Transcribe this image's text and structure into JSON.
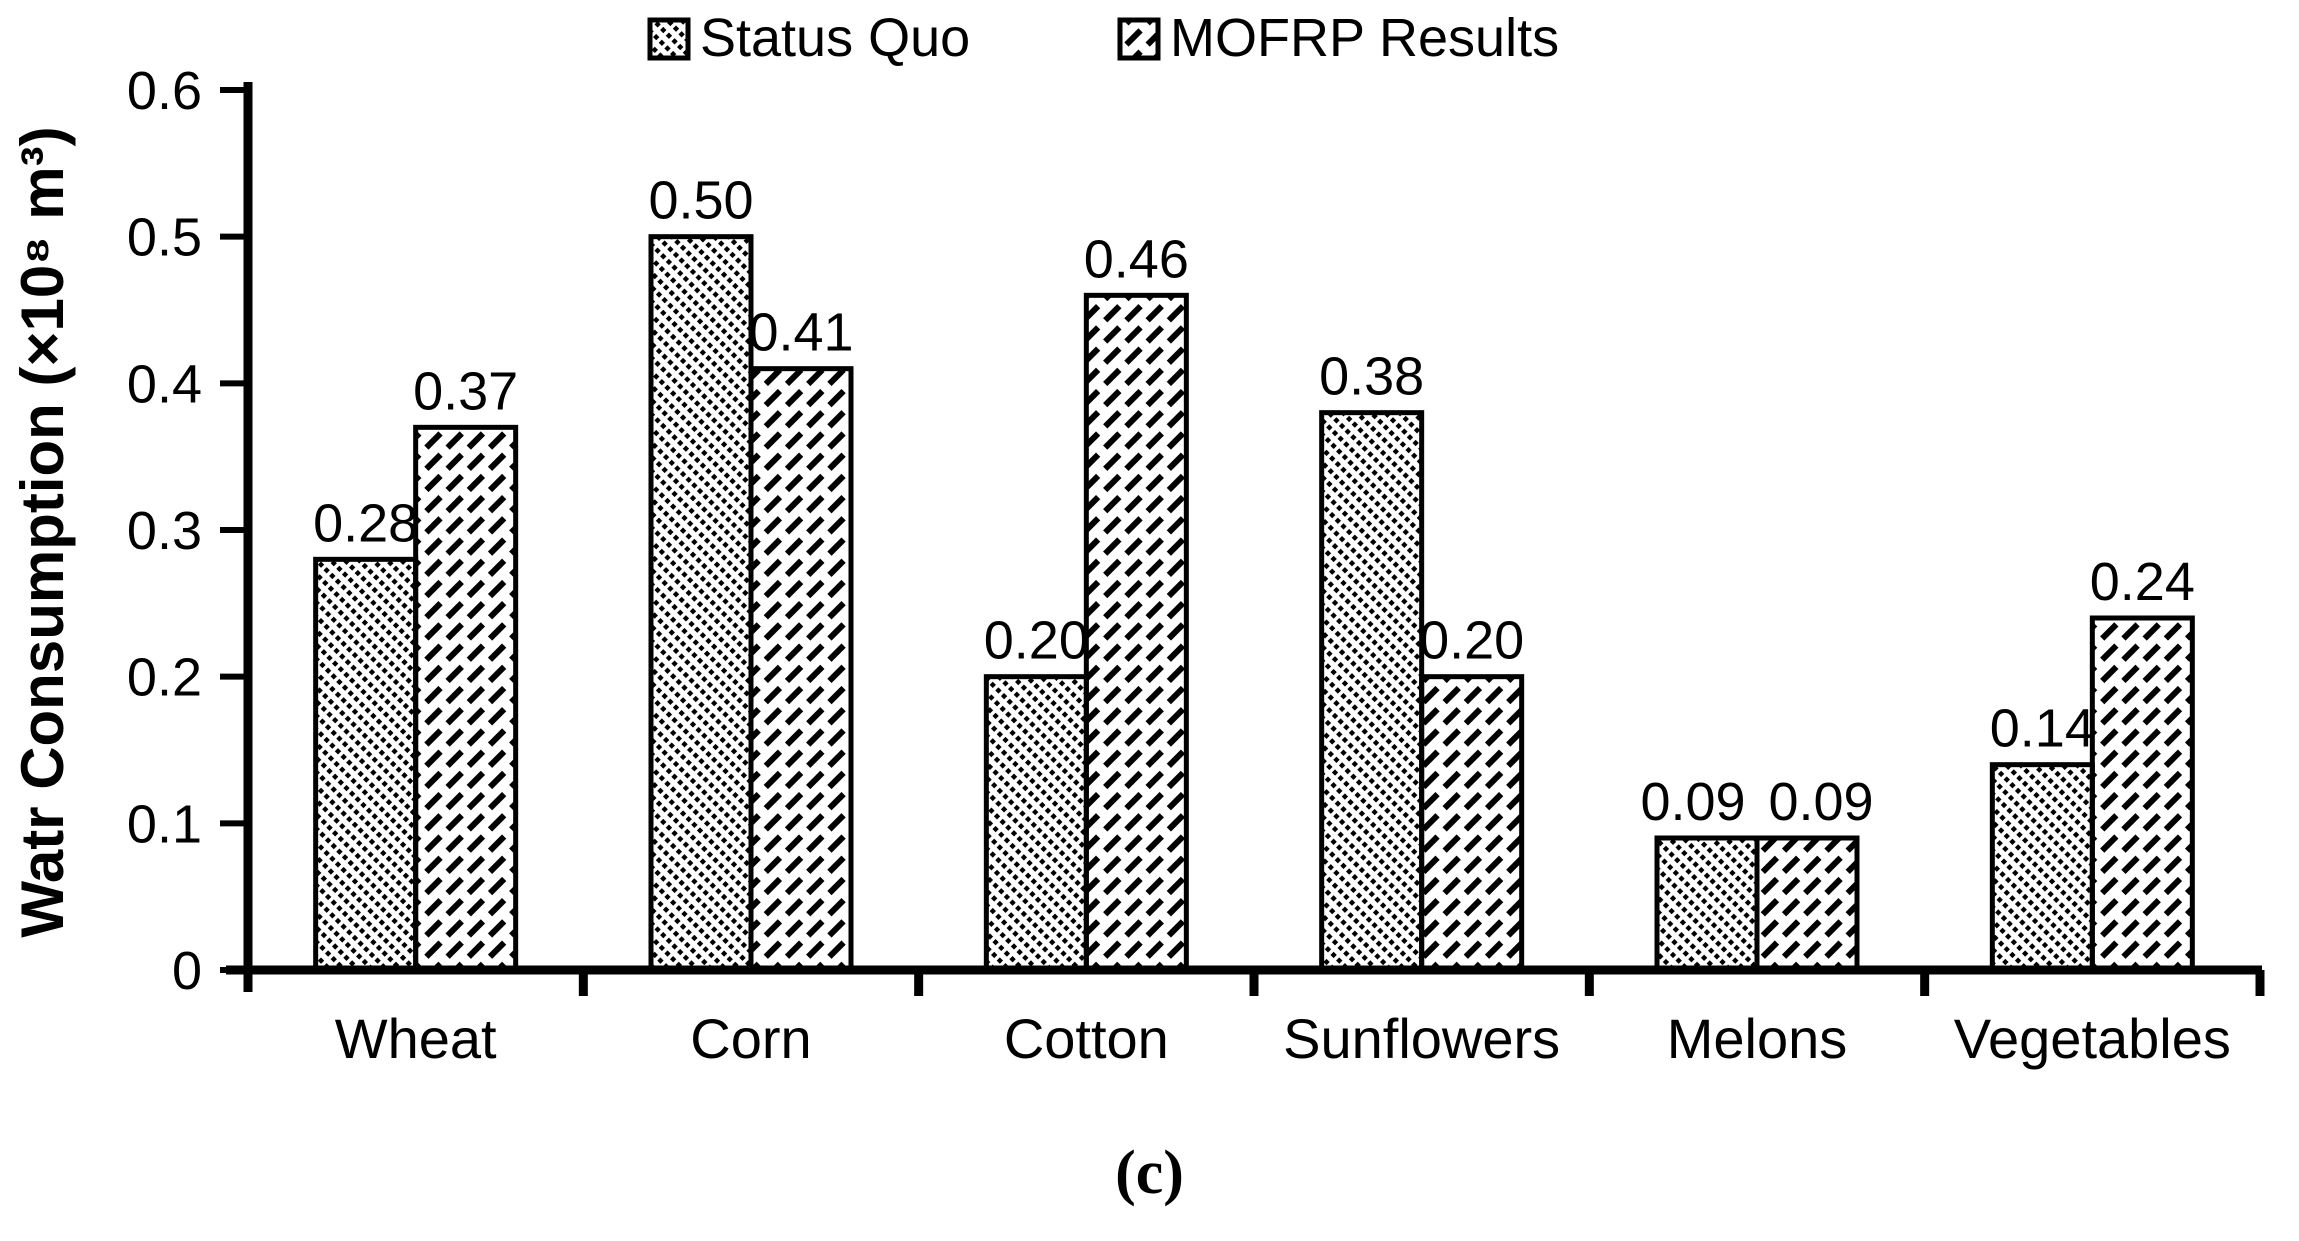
{
  "chart_data": {
    "type": "bar",
    "title": "",
    "categories": [
      "Wheat",
      "Corn",
      "Cotton",
      "Sunflowers",
      "Melons",
      "Vegetables"
    ],
    "series": [
      {
        "name": "Status Quo",
        "values": [
          0.28,
          0.5,
          0.2,
          0.38,
          0.09,
          0.14
        ]
      },
      {
        "name": "MOFRP Results",
        "values": [
          0.37,
          0.41,
          0.46,
          0.2,
          0.09,
          0.24
        ]
      }
    ],
    "value_label_format": "2dp",
    "ylabel": "Watr Consumption (×10⁸ m³)",
    "ylim": [
      0,
      0.6
    ],
    "yticks": [
      "0",
      "0.1",
      "0.2",
      "0.3",
      "0.4",
      "0.5",
      "0.6"
    ],
    "grid": false,
    "legend_position": "top-center",
    "caption": "(c)",
    "colors": {
      "bar_fill": "#ffffff",
      "bar_stroke": "#000000",
      "hatch": "#000000",
      "text": "#000000",
      "background": "#ffffff"
    }
  }
}
